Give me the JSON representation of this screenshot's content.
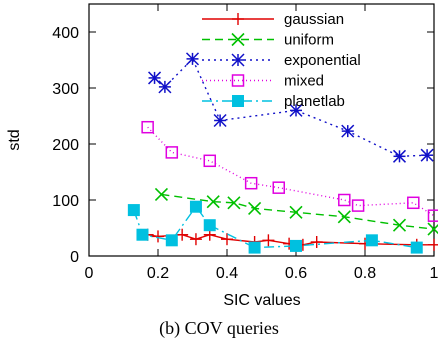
{
  "caption": "(b) COV queries",
  "chart_data": {
    "type": "line",
    "xlabel": "SIC values",
    "ylabel": "std",
    "xlim": [
      0,
      1
    ],
    "ylim": [
      0,
      450
    ],
    "x_ticks": [
      "0",
      "0.2",
      "0.4",
      "0.6",
      "0.8",
      "1"
    ],
    "y_ticks": [
      "0",
      "100",
      "200",
      "300",
      "400"
    ],
    "x_tick_values": [
      0,
      0.2,
      0.4,
      0.6,
      0.8,
      1.0
    ],
    "y_tick_values": [
      0,
      100,
      200,
      300,
      400
    ],
    "grid": false,
    "legend_position": "top-right",
    "series": [
      {
        "name": "gaussian",
        "color": "#e00000",
        "marker": "plus",
        "dash": "solid",
        "x": [
          0.17,
          0.2,
          0.27,
          0.31,
          0.35,
          0.4,
          0.48,
          0.52,
          0.58,
          0.62,
          0.66,
          0.8,
          0.95,
          1.0
        ],
        "y": [
          38,
          35,
          38,
          30,
          38,
          30,
          25,
          28,
          22,
          20,
          25,
          22,
          20,
          20
        ]
      },
      {
        "name": "uniform",
        "color": "#00c000",
        "marker": "x",
        "dash": "8,5",
        "x": [
          0.21,
          0.36,
          0.42,
          0.48,
          0.6,
          0.74,
          0.9,
          1.0
        ],
        "y": [
          110,
          97,
          95,
          85,
          78,
          70,
          55,
          48
        ]
      },
      {
        "name": "exponential",
        "color": "#1010c8",
        "marker": "star",
        "dash": "2,4",
        "x": [
          0.19,
          0.22,
          0.3,
          0.38,
          0.6,
          0.75,
          0.9,
          0.98
        ],
        "y": [
          318,
          302,
          352,
          242,
          260,
          223,
          178,
          180
        ]
      },
      {
        "name": "mixed",
        "color": "#e000e0",
        "marker": "open-square",
        "dash": "1,3",
        "x": [
          0.17,
          0.24,
          0.35,
          0.47,
          0.55,
          0.74,
          0.78,
          0.94,
          1.0
        ],
        "y": [
          230,
          185,
          170,
          130,
          122,
          100,
          90,
          95,
          72
        ]
      },
      {
        "name": "planetlab",
        "color": "#00c0e0",
        "marker": "filled-square",
        "dash": "10,4,2,4",
        "x": [
          0.13,
          0.155,
          0.24,
          0.31,
          0.35,
          0.48,
          0.6,
          0.82,
          0.95
        ],
        "y": [
          82,
          38,
          28,
          88,
          55,
          15,
          18,
          28,
          15
        ]
      }
    ]
  }
}
